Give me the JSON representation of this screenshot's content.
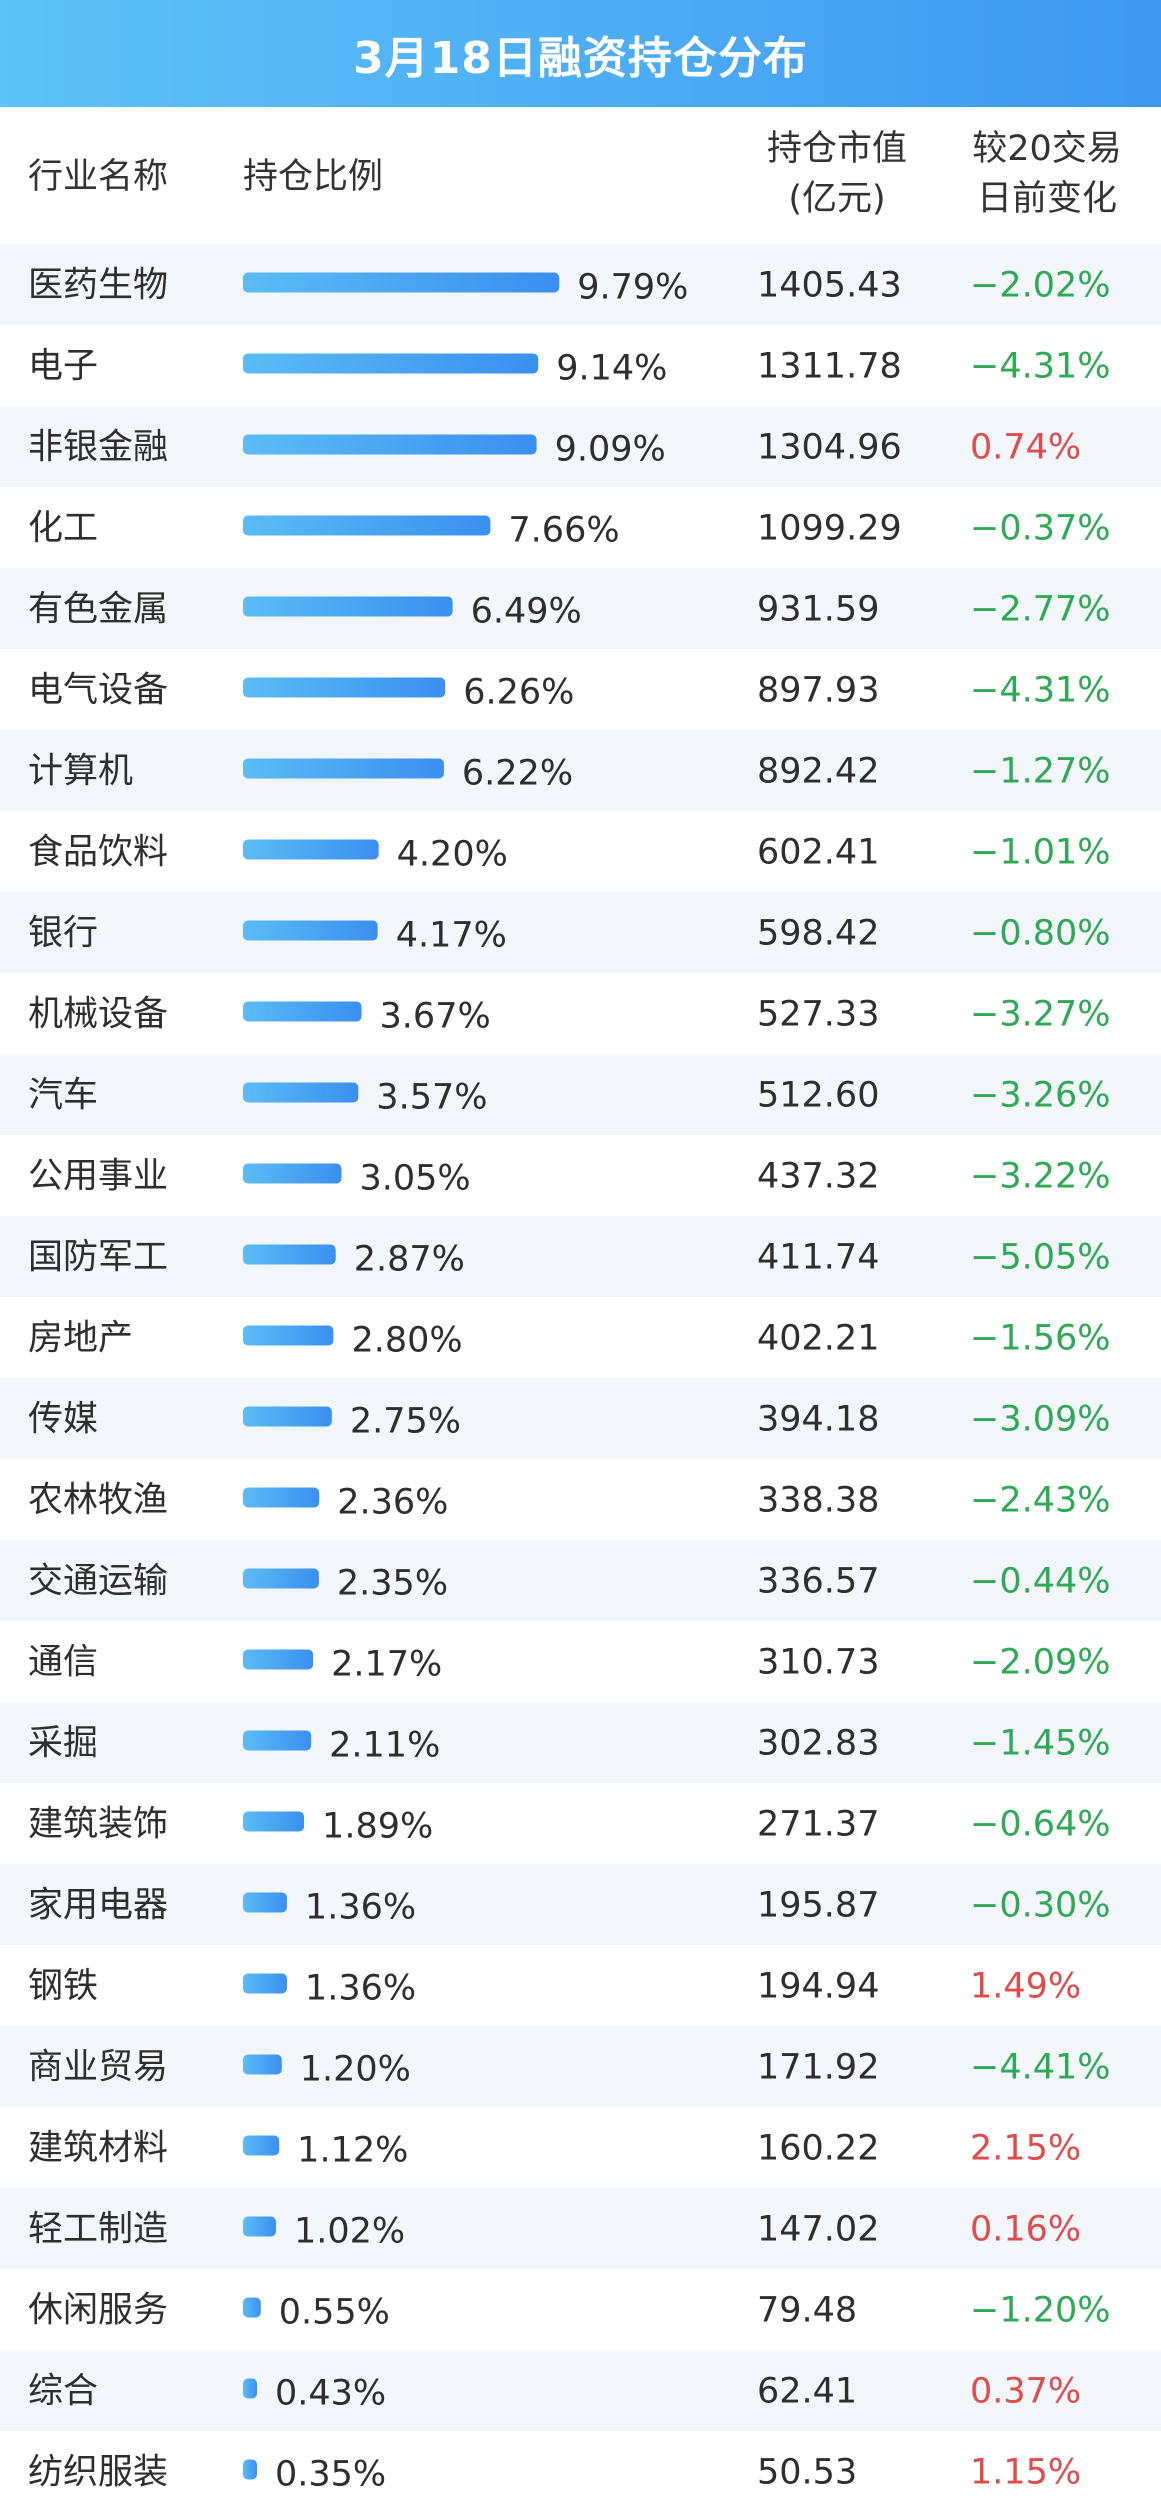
{
  "title": "3月18日融资持仓分布",
  "headers": {
    "name": "行业名称",
    "ratio": "持仓比例",
    "value_line1": "持仓市值",
    "value_line2": "(亿元)",
    "change_line1": "较20交易",
    "change_line2": "日前变化"
  },
  "colors": {
    "bar_start": "#5bbcf5",
    "bar_end": "#3b8ff0",
    "positive": "#e24b4b",
    "negative": "#2eaa55",
    "row_alt": "#f3f6fb"
  },
  "chart_data": {
    "type": "table",
    "title": "3月18日融资持仓分布",
    "columns": [
      "行业名称",
      "持仓比例",
      "持仓市值(亿元)",
      "较20交易日前变化"
    ],
    "rows": [
      {
        "name": "医药生物",
        "ratio": 9.79,
        "ratio_label": "9.79%",
        "value": "1405.43",
        "change": "−2.02%",
        "change_num": -2.02
      },
      {
        "name": "电子",
        "ratio": 9.14,
        "ratio_label": "9.14%",
        "value": "1311.78",
        "change": "−4.31%",
        "change_num": -4.31
      },
      {
        "name": "非银金融",
        "ratio": 9.09,
        "ratio_label": "9.09%",
        "value": "1304.96",
        "change": "0.74%",
        "change_num": 0.74
      },
      {
        "name": "化工",
        "ratio": 7.66,
        "ratio_label": "7.66%",
        "value": "1099.29",
        "change": "−0.37%",
        "change_num": -0.37
      },
      {
        "name": "有色金属",
        "ratio": 6.49,
        "ratio_label": "6.49%",
        "value": "931.59",
        "change": "−2.77%",
        "change_num": -2.77
      },
      {
        "name": "电气设备",
        "ratio": 6.26,
        "ratio_label": "6.26%",
        "value": "897.93",
        "change": "−4.31%",
        "change_num": -4.31
      },
      {
        "name": "计算机",
        "ratio": 6.22,
        "ratio_label": "6.22%",
        "value": "892.42",
        "change": "−1.27%",
        "change_num": -1.27
      },
      {
        "name": "食品饮料",
        "ratio": 4.2,
        "ratio_label": "4.20%",
        "value": "602.41",
        "change": "−1.01%",
        "change_num": -1.01
      },
      {
        "name": "银行",
        "ratio": 4.17,
        "ratio_label": "4.17%",
        "value": "598.42",
        "change": "−0.80%",
        "change_num": -0.8
      },
      {
        "name": "机械设备",
        "ratio": 3.67,
        "ratio_label": "3.67%",
        "value": "527.33",
        "change": "−3.27%",
        "change_num": -3.27
      },
      {
        "name": "汽车",
        "ratio": 3.57,
        "ratio_label": "3.57%",
        "value": "512.60",
        "change": "−3.26%",
        "change_num": -3.26
      },
      {
        "name": "公用事业",
        "ratio": 3.05,
        "ratio_label": "3.05%",
        "value": "437.32",
        "change": "−3.22%",
        "change_num": -3.22
      },
      {
        "name": "国防军工",
        "ratio": 2.87,
        "ratio_label": "2.87%",
        "value": "411.74",
        "change": "−5.05%",
        "change_num": -5.05
      },
      {
        "name": "房地产",
        "ratio": 2.8,
        "ratio_label": "2.80%",
        "value": "402.21",
        "change": "−1.56%",
        "change_num": -1.56
      },
      {
        "name": "传媒",
        "ratio": 2.75,
        "ratio_label": "2.75%",
        "value": "394.18",
        "change": "−3.09%",
        "change_num": -3.09
      },
      {
        "name": "农林牧渔",
        "ratio": 2.36,
        "ratio_label": "2.36%",
        "value": "338.38",
        "change": "−2.43%",
        "change_num": -2.43
      },
      {
        "name": "交通运输",
        "ratio": 2.35,
        "ratio_label": "2.35%",
        "value": "336.57",
        "change": "−0.44%",
        "change_num": -0.44
      },
      {
        "name": "通信",
        "ratio": 2.17,
        "ratio_label": "2.17%",
        "value": "310.73",
        "change": "−2.09%",
        "change_num": -2.09
      },
      {
        "name": "采掘",
        "ratio": 2.11,
        "ratio_label": "2.11%",
        "value": "302.83",
        "change": "−1.45%",
        "change_num": -1.45
      },
      {
        "name": "建筑装饰",
        "ratio": 1.89,
        "ratio_label": "1.89%",
        "value": "271.37",
        "change": "−0.64%",
        "change_num": -0.64
      },
      {
        "name": "家用电器",
        "ratio": 1.36,
        "ratio_label": "1.36%",
        "value": "195.87",
        "change": "−0.30%",
        "change_num": -0.3
      },
      {
        "name": "钢铁",
        "ratio": 1.36,
        "ratio_label": "1.36%",
        "value": "194.94",
        "change": "1.49%",
        "change_num": 1.49
      },
      {
        "name": "商业贸易",
        "ratio": 1.2,
        "ratio_label": "1.20%",
        "value": "171.92",
        "change": "−4.41%",
        "change_num": -4.41
      },
      {
        "name": "建筑材料",
        "ratio": 1.12,
        "ratio_label": "1.12%",
        "value": "160.22",
        "change": "2.15%",
        "change_num": 2.15
      },
      {
        "name": "轻工制造",
        "ratio": 1.02,
        "ratio_label": "1.02%",
        "value": "147.02",
        "change": "0.16%",
        "change_num": 0.16
      },
      {
        "name": "休闲服务",
        "ratio": 0.55,
        "ratio_label": "0.55%",
        "value": "79.48",
        "change": "−1.20%",
        "change_num": -1.2
      },
      {
        "name": "综合",
        "ratio": 0.43,
        "ratio_label": "0.43%",
        "value": "62.41",
        "change": "0.37%",
        "change_num": 0.37
      },
      {
        "name": "纺织服装",
        "ratio": 0.35,
        "ratio_label": "0.35%",
        "value": "50.53",
        "change": "1.15%",
        "change_num": 1.15
      }
    ]
  }
}
